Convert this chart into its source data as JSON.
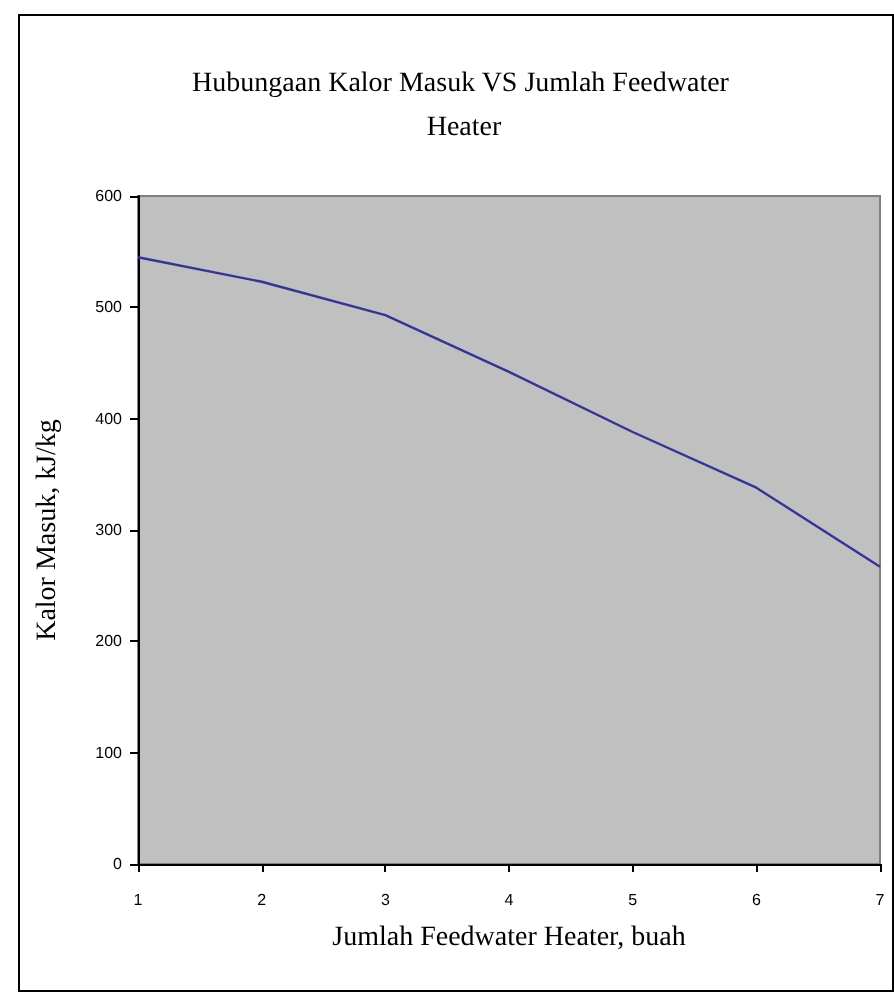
{
  "chart_data": {
    "type": "line",
    "title": "Hubungaan Kalor Masuk VS Jumlah Feedwater Heater",
    "xlabel": "Jumlah Feedwater Heater, buah",
    "ylabel": "Kalor Masuk, kJ/kg",
    "x": [
      1,
      2,
      3,
      4,
      5,
      6,
      7
    ],
    "series": [
      {
        "color": "#333399",
        "values": [
          545,
          523,
          493,
          442,
          388,
          338,
          267
        ]
      }
    ],
    "xlim": [
      1,
      7
    ],
    "xticks": [
      1,
      2,
      3,
      4,
      5,
      6,
      7
    ],
    "ylim": [
      0,
      600
    ],
    "yticks": [
      0,
      100,
      200,
      300,
      400,
      500,
      600
    ],
    "grid": false,
    "marker": "none",
    "line_style": "solid"
  }
}
